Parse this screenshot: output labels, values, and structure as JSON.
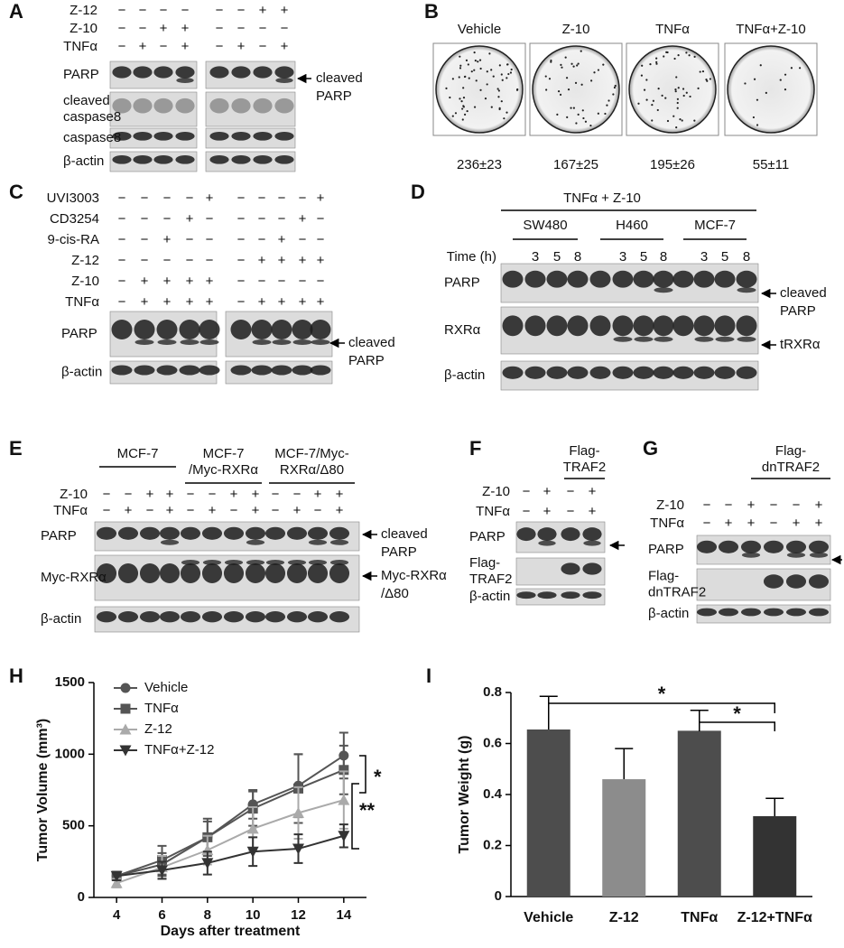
{
  "panels": {
    "A": {
      "letter": "A",
      "rows": [
        {
          "label": "Z-12",
          "signs": [
            "−",
            "−",
            "−",
            "−",
            "−",
            "−",
            "+",
            "+"
          ]
        },
        {
          "label": "Z-10",
          "signs": [
            "−",
            "−",
            "+",
            "+",
            "−",
            "−",
            "−",
            "−"
          ]
        },
        {
          "label": "TNFα",
          "signs": [
            "−",
            "+",
            "−",
            "+",
            "−",
            "+",
            "−",
            "+"
          ]
        }
      ],
      "blots": [
        [
          "PARP"
        ],
        [
          "cleaved",
          "caspase8"
        ],
        [
          "caspase8"
        ],
        [
          "β-actin"
        ]
      ],
      "annotations": [
        [
          "cleaved",
          "PARP"
        ]
      ]
    },
    "B": {
      "letter": "B",
      "titles": [
        "Vehicle",
        "Z-10",
        "TNFα",
        "TNFα+Z-10"
      ],
      "counts": [
        "236±23",
        "167±25",
        "195±26",
        "55±11"
      ]
    },
    "C": {
      "letter": "C",
      "rows": [
        {
          "label": "UVI3003",
          "signs": [
            "−",
            "−",
            "−",
            "−",
            "+",
            "−",
            "−",
            "−",
            "−",
            "+"
          ]
        },
        {
          "label": "CD3254",
          "signs": [
            "−",
            "−",
            "−",
            "+",
            "−",
            "−",
            "−",
            "−",
            "+",
            "−"
          ]
        },
        {
          "label": "9-cis-RA",
          "signs": [
            "−",
            "−",
            "+",
            "−",
            "−",
            "−",
            "−",
            "+",
            "−",
            "−"
          ]
        },
        {
          "label": "Z-12",
          "signs": [
            "−",
            "−",
            "−",
            "−",
            "−",
            "−",
            "+",
            "+",
            "+",
            "+"
          ]
        },
        {
          "label": "Z-10",
          "signs": [
            "−",
            "+",
            "+",
            "+",
            "+",
            "−",
            "−",
            "−",
            "−",
            "−"
          ]
        },
        {
          "label": "TNFα",
          "signs": [
            "−",
            "+",
            "+",
            "+",
            "+",
            "−",
            "+",
            "+",
            "+",
            "+"
          ]
        }
      ],
      "blots": [
        [
          "PARP"
        ],
        [
          "β-actin"
        ]
      ],
      "annotations": [
        [
          "cleaved",
          "PARP"
        ]
      ]
    },
    "D": {
      "letter": "D",
      "title": "TNFα + Z-10",
      "groups": [
        [
          "SW480"
        ],
        [
          "H460"
        ],
        [
          "MCF-7"
        ]
      ],
      "rows": [
        {
          "label": "Time (h)",
          "signs": [
            null,
            "3",
            "5",
            "8",
            null,
            "3",
            "5",
            "8",
            null,
            "3",
            "5",
            "8"
          ]
        }
      ],
      "blots": [
        [
          "PARP"
        ],
        [
          "RXRα"
        ],
        [
          "β-actin"
        ]
      ],
      "annotations": [
        [
          "cleaved",
          "PARP"
        ],
        [
          "tRXRα"
        ]
      ]
    },
    "E": {
      "letter": "E",
      "groups": [
        [
          "MCF-7"
        ],
        [
          "MCF-7",
          "/Myc-RXRα"
        ],
        [
          "MCF-7/Myc-",
          "RXRα/Δ80"
        ]
      ],
      "rows": [
        {
          "label": "Z-10",
          "signs": [
            "−",
            "−",
            "+",
            "+",
            "−",
            "−",
            "+",
            "+",
            "−",
            "−",
            "+",
            "+"
          ]
        },
        {
          "label": "TNFα",
          "signs": [
            "−",
            "+",
            "−",
            "+",
            "−",
            "+",
            "−",
            "+",
            "−",
            "+",
            "−",
            "+"
          ]
        }
      ],
      "blots": [
        [
          "PARP"
        ],
        [
          "Myc-RXRα"
        ],
        [
          "β-actin"
        ]
      ],
      "annotations": [
        [
          "cleaved",
          "PARP"
        ],
        [
          "Myc-RXRα",
          "/Δ80"
        ]
      ]
    },
    "F": {
      "letter": "F",
      "groups": [
        [
          "Flag-",
          "TRAF2"
        ]
      ],
      "rows": [
        {
          "label": "Z-10",
          "signs": [
            "−",
            "+",
            "−",
            "+"
          ]
        },
        {
          "label": "TNFα",
          "signs": [
            "−",
            "+",
            "−",
            "+"
          ]
        }
      ],
      "blots": [
        [
          "PARP"
        ],
        [
          "Flag-",
          "TRAF2"
        ],
        [
          "β-actin"
        ]
      ]
    },
    "G": {
      "letter": "G",
      "groups": [
        [
          "Flag-",
          "dnTRAF2"
        ]
      ],
      "rows": [
        {
          "label": "Z-10",
          "signs": [
            "−",
            "−",
            "+",
            "−",
            "−",
            "+"
          ]
        },
        {
          "label": "TNFα",
          "signs": [
            "−",
            "+",
            "+",
            "−",
            "+",
            "+"
          ]
        }
      ],
      "blots": [
        [
          "PARP"
        ],
        [
          "Flag-",
          "dnTRAF2"
        ],
        [
          "β-actin"
        ]
      ]
    }
  },
  "chart_data": [
    {
      "type": "line",
      "panel_label": "H",
      "xlabel": "Days after treatment",
      "ylabel": "Tumor Volume (mm³)",
      "x": [
        4,
        6,
        8,
        10,
        12,
        14
      ],
      "xlim": [
        3,
        15
      ],
      "xticks": [
        4,
        6,
        8,
        10,
        12,
        14
      ],
      "ylim": [
        0,
        1500
      ],
      "yticks": [
        0,
        500,
        1000,
        1500
      ],
      "series": [
        {
          "name": "Vehicle",
          "color": "#555555",
          "marker": "circle",
          "values": [
            150,
            230,
            420,
            650,
            780,
            990
          ],
          "errors": [
            30,
            80,
            130,
            100,
            220,
            160
          ]
        },
        {
          "name": "TNFα",
          "color": "#555555",
          "marker": "square",
          "values": [
            150,
            260,
            420,
            620,
            760,
            890
          ],
          "errors": [
            30,
            100,
            110,
            120,
            240,
            170
          ]
        },
        {
          "name": "Z-12",
          "color": "#aaaaaa",
          "marker": "triangle-up",
          "values": [
            100,
            210,
            330,
            480,
            590,
            680
          ],
          "errors": [
            30,
            80,
            100,
            150,
            180,
            200
          ]
        },
        {
          "name": "TNFα+Z-12",
          "color": "#333333",
          "marker": "triangle-down",
          "values": [
            150,
            190,
            240,
            320,
            340,
            430
          ],
          "errors": [
            30,
            60,
            80,
            100,
            100,
            80
          ]
        }
      ],
      "annotations": [
        "*",
        "**"
      ]
    },
    {
      "type": "bar",
      "panel_label": "I",
      "ylabel": "Tumor Weight (g)",
      "categories": [
        "Vehicle",
        "Z-12",
        "TNFα",
        "Z-12+TNFα"
      ],
      "values": [
        0.655,
        0.46,
        0.65,
        0.315
      ],
      "errors": [
        0.13,
        0.12,
        0.08,
        0.07
      ],
      "colors": [
        "#4d4d4d",
        "#8c8c8c",
        "#4d4d4d",
        "#333333"
      ],
      "ylim": [
        0,
        0.8
      ],
      "yticks": [
        0,
        0.2,
        0.4,
        0.6,
        0.8
      ],
      "annotations": [
        "*",
        "*"
      ]
    }
  ]
}
